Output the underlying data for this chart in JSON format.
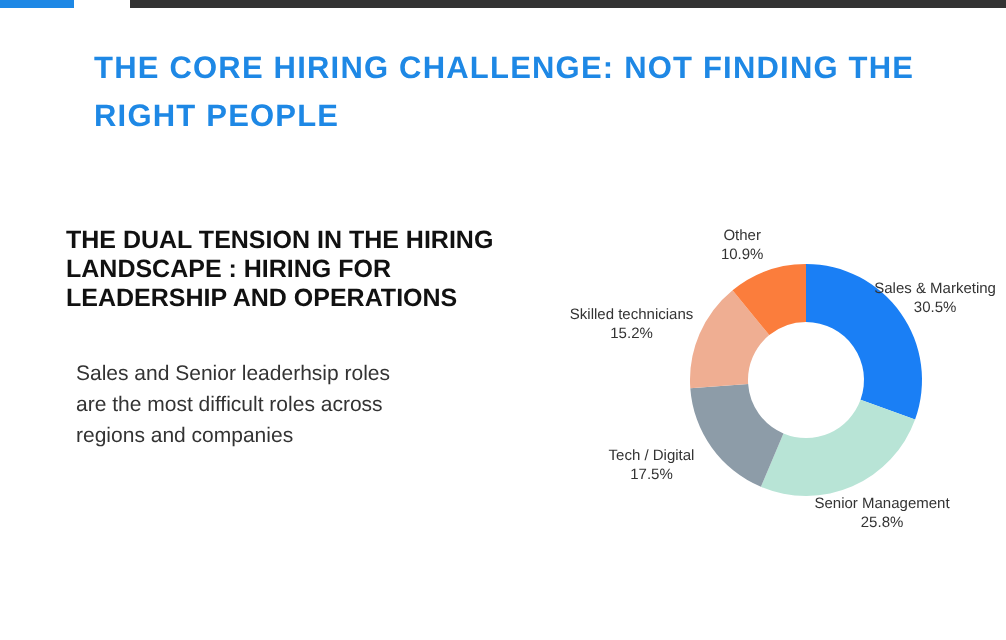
{
  "chart_data": {
    "type": "donut",
    "title": "THE CORE HIRING CHALLENGE: NOT FINDING THE RIGHT PEOPLE",
    "subtitle": "THE DUAL TENSION IN THE HIRING LANDSCAPE : HIRING FOR LEADERSHIP AND OPERATIONS",
    "annotations": [
      "Sales and Senior leaderhsip roles are the most difficult roles across regions and companies"
    ],
    "categories": [
      "Sales & Marketing",
      "Senior Management",
      "Tech / Digital",
      "Skilled technicians",
      "Other"
    ],
    "values": [
      30.5,
      25.8,
      17.5,
      15.2,
      10.9
    ],
    "value_labels": [
      "30.5%",
      "25.8%",
      "17.5%",
      "15.2%",
      "10.9%"
    ],
    "colors": [
      "#1a7ff5",
      "#b8e4d6",
      "#8d9ca8",
      "#efae92",
      "#fb7d3c"
    ]
  }
}
